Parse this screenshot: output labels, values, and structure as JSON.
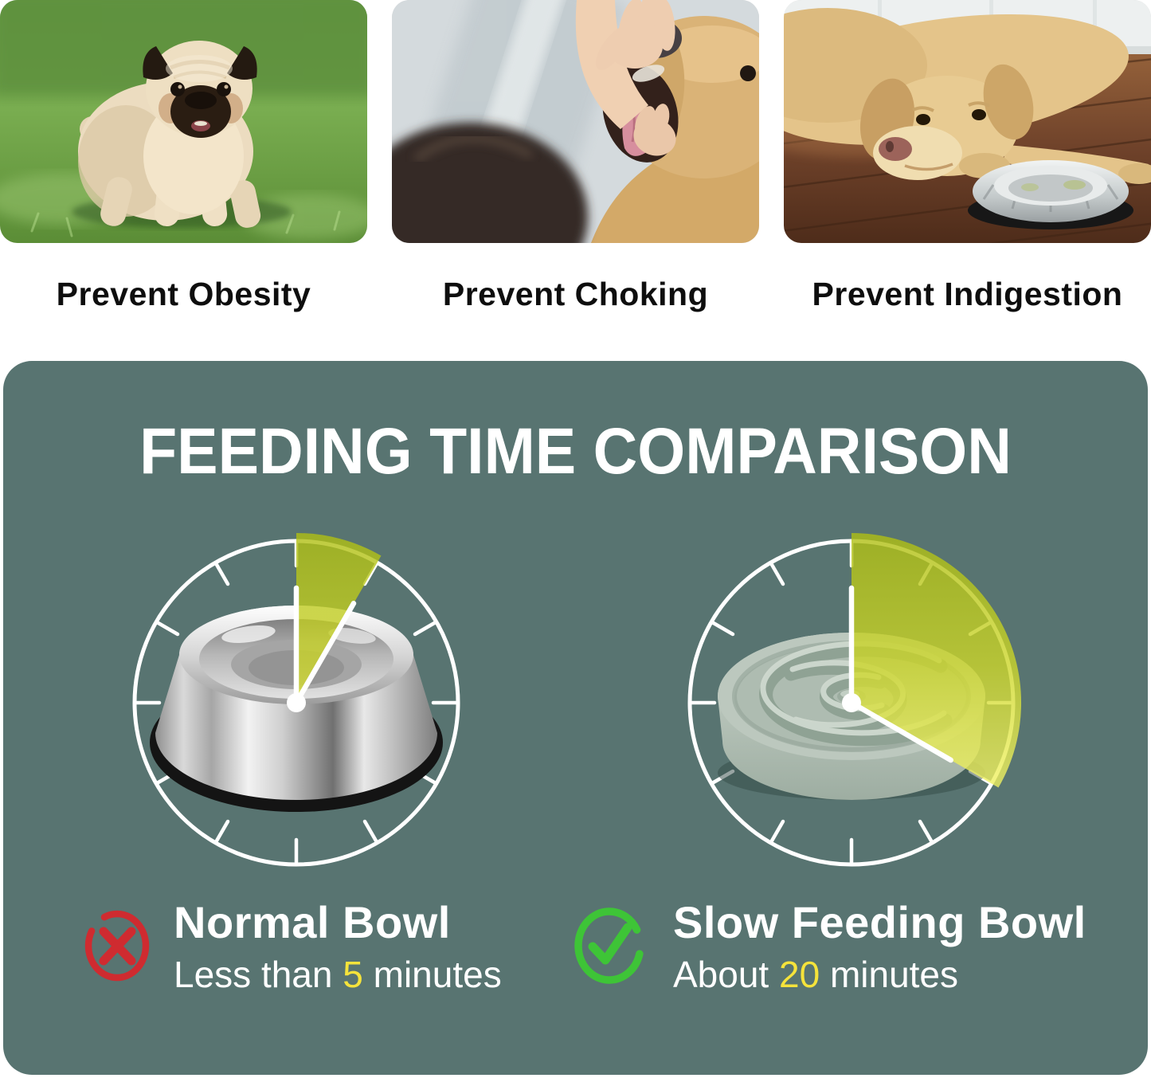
{
  "benefits": {
    "items": [
      {
        "caption": "Prevent Obesity",
        "photo": "fat-pug-standing-on-grass"
      },
      {
        "caption": "Prevent Choking",
        "photo": "owner-checking-golden-retriever-mouth"
      },
      {
        "caption": "Prevent Indigestion",
        "photo": "labrador-lying-on-floor-by-steel-bowl"
      }
    ]
  },
  "comparison": {
    "title": "FEEDING TIME COMPARISON",
    "clocks": [
      {
        "id": "normal-bowl-clock",
        "bowl": "stainless-steel-bowl",
        "minutes": 5
      },
      {
        "id": "slow-bowl-clock",
        "bowl": "slow-feeding-maze-bowl",
        "minutes": 20
      }
    ],
    "legend": [
      {
        "icon": "x-icon",
        "name": "Normal Bowl",
        "time_prefix": "Less than ",
        "time_value": "5",
        "time_suffix": " minutes"
      },
      {
        "icon": "check-icon",
        "name": "Slow Feeding Bowl",
        "time_prefix": "About ",
        "time_value": "20",
        "time_suffix": " minutes"
      }
    ]
  },
  "colors": {
    "panel_green": "#587471",
    "highlight_yellow": "#f5e33b",
    "wedge_yellow_green": "#c3cf2b",
    "cross_red": "#cf2b30",
    "check_green": "#3ec437",
    "clock_white": "#ffffff"
  }
}
